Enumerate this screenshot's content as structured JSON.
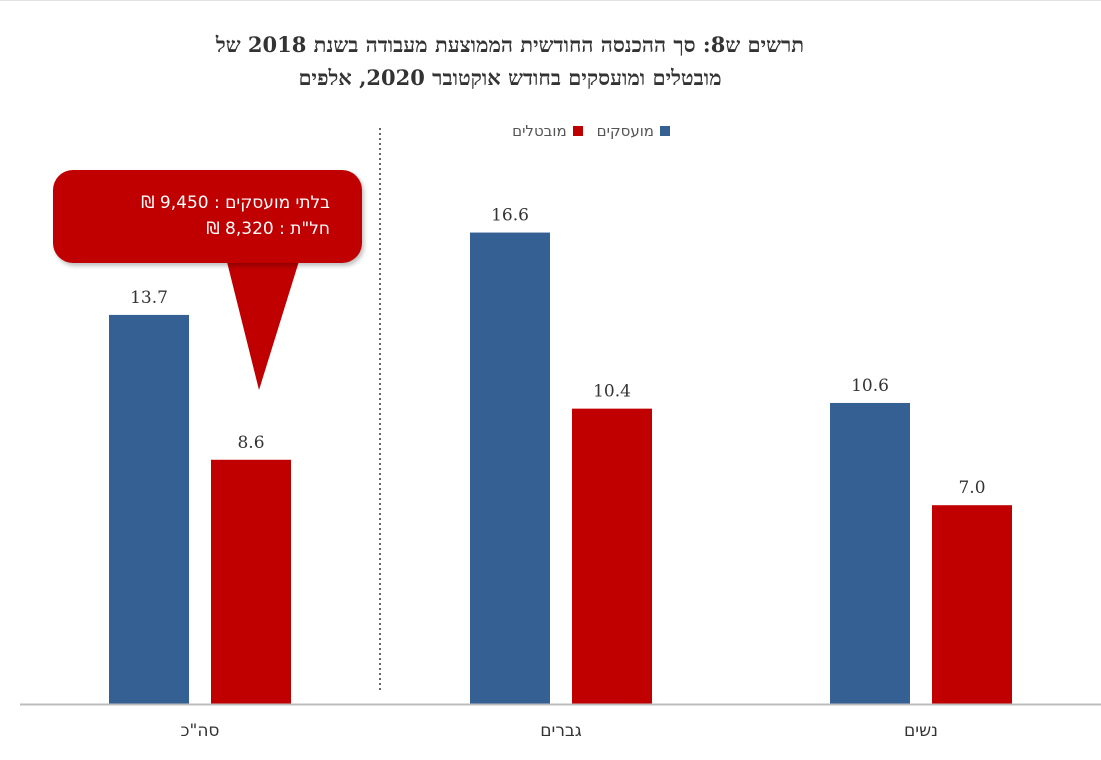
{
  "chart_data": {
    "type": "bar",
    "title": "תרשים ש8: סך ההכנסה החודשית הממוצעת מעבודה בשנת 2018 של מובטלים ומועסקים בחודש אוקטובר 2020, אלפים",
    "title_line1": "תרשים ש8: סך ההכנסה החודשית הממוצעת מעבודה בשנת 2018 של",
    "title_line2": "מובטלים ומועסקים בחודש אוקטובר 2020, אלפים",
    "categories": [
      "סה\"כ",
      "גברים",
      "נשים"
    ],
    "series": [
      {
        "name": "מועסקים",
        "color": "#356093",
        "values": [
          13.7,
          16.6,
          10.6
        ]
      },
      {
        "name": "מובטלים",
        "color": "#c00000",
        "values": [
          8.6,
          10.4,
          7.0
        ]
      }
    ],
    "legend_position": "top",
    "grid": false,
    "annotation": {
      "line1": "בלתי מועסקים : 9,450 ₪",
      "line2": "חל\"ת : 8,320 ₪",
      "color": "#c00000"
    }
  }
}
